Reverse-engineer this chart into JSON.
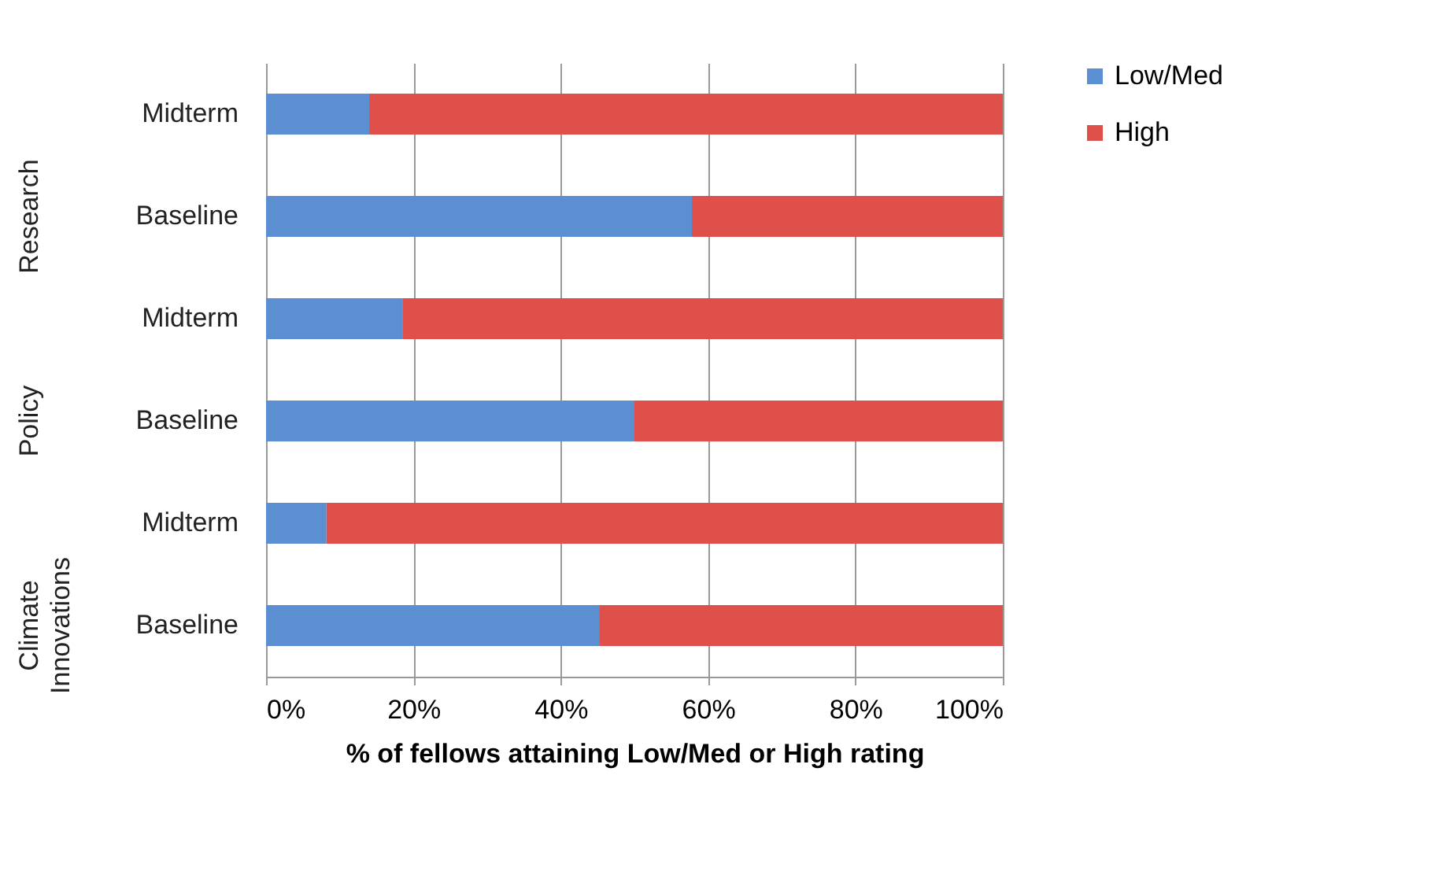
{
  "chart_data": {
    "type": "bar",
    "orientation": "horizontal",
    "stacked": true,
    "xlabel": "% of fellows attaining Low/Med or High rating",
    "categories": [
      "Midterm",
      "Baseline",
      "Midterm",
      "Baseline",
      "Midterm",
      "Baseline"
    ],
    "series": [
      {
        "name": "Low/Med",
        "color": "#5b8fd2",
        "values": [
          14,
          57.8,
          18.5,
          50,
          8.2,
          45.2
        ]
      },
      {
        "name": "High",
        "color": "#e0504a",
        "values": [
          86,
          42.2,
          81.5,
          50,
          91.8,
          54.8
        ]
      }
    ],
    "xlim": [
      0,
      100
    ],
    "xticks": [
      {
        "value": 0,
        "label": "0%"
      },
      {
        "value": 20,
        "label": "20%"
      },
      {
        "value": 40,
        "label": "40%"
      },
      {
        "value": 60,
        "label": "60%"
      },
      {
        "value": 80,
        "label": "80%"
      },
      {
        "value": 100,
        "label": "100%"
      }
    ],
    "annotations": [
      "Research",
      "Policy",
      "Climate Innovations"
    ],
    "grid": "x",
    "legend": "right"
  }
}
